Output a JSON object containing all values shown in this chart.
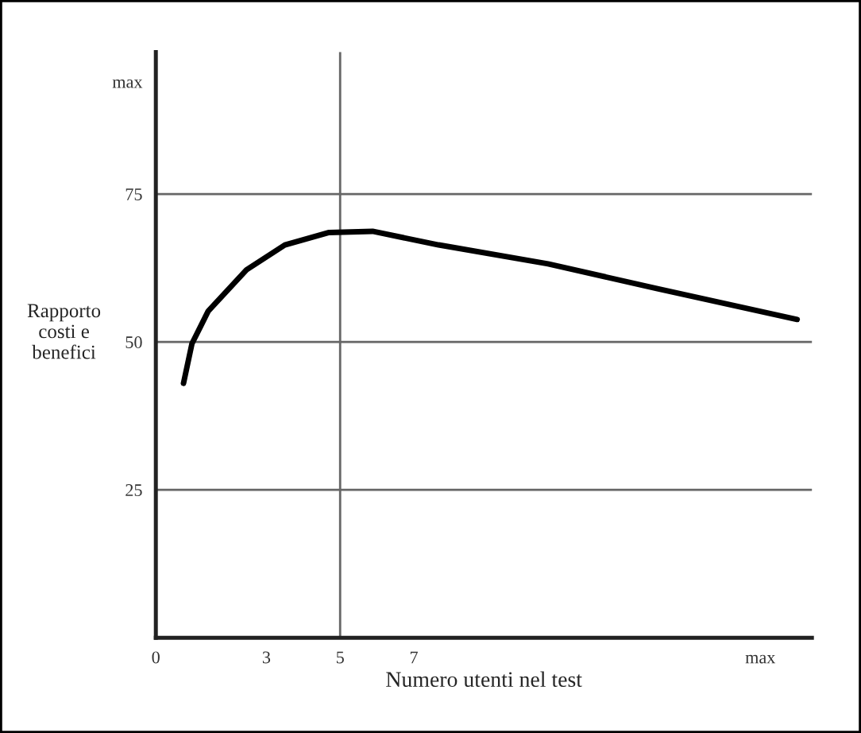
{
  "chart_data": {
    "type": "line",
    "xlabel": "Numero utenti nel test",
    "ylabel": "Rapporto\ncosti e\nbenefici",
    "x": [
      0.75,
      0.98,
      1.42,
      2.46,
      3.5,
      4.7,
      5.88,
      7.67,
      10.64,
      13.61,
      17.4
    ],
    "series": [
      {
        "color": "#000000",
        "values": [
          43,
          49.7,
          55.2,
          62.2,
          66.4,
          68.5,
          68.7,
          66.4,
          63.2,
          59,
          53.8
        ]
      }
    ],
    "xlim": [
      0,
      17.8
    ],
    "ylim": [
      0,
      99
    ],
    "xticks": [
      0,
      3,
      5,
      7,
      {
        "value": 16.4,
        "label": "max"
      }
    ],
    "yticks": [
      25,
      50,
      75,
      {
        "value": 94,
        "label": "max"
      }
    ],
    "ref_lines": [
      {
        "axis": "x",
        "value": 5,
        "color": "#666666"
      }
    ],
    "grid": "y",
    "marker": "none",
    "line_style": "solid"
  }
}
